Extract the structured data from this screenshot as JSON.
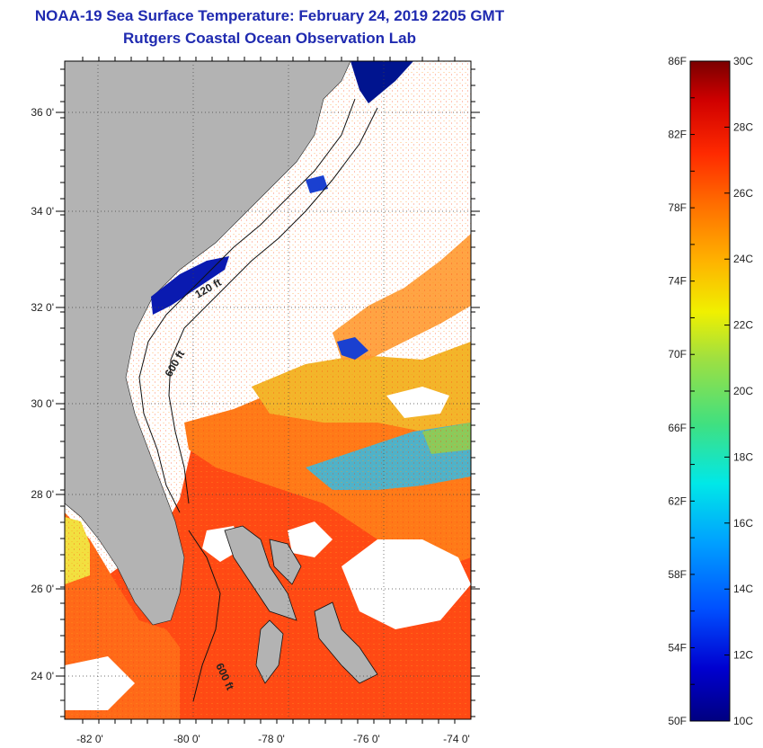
{
  "header": {
    "title": "NOAA-19 Sea Surface Temperature:  February 24, 2019 2205 GMT",
    "subtitle": "Rutgers Coastal Ocean Observation Lab"
  },
  "map": {
    "lon_ticks": [
      "-82 0'",
      "-80 0'",
      "-78 0'",
      "-76 0'",
      "-74 0'"
    ],
    "lat_ticks": [
      "36 0'",
      "34 0'",
      "32 0'",
      "30 0'",
      "28 0'",
      "26 0'",
      "24 0'"
    ],
    "contour_labels": [
      "120 ft",
      "600 ft",
      "600 ft"
    ],
    "land_color": "#b3b3b3",
    "no_data_color": "#ffffff"
  },
  "colorbar": {
    "fahrenheit": [
      "86F",
      "82F",
      "78F",
      "74F",
      "70F",
      "66F",
      "62F",
      "58F",
      "54F",
      "50F"
    ],
    "celsius": [
      "30C",
      "28C",
      "26C",
      "24C",
      "22C",
      "20C",
      "18C",
      "16C",
      "14C",
      "12C",
      "10C"
    ],
    "colors": [
      "#000080",
      "#0000d0",
      "#0050ff",
      "#00a0ff",
      "#00e8e8",
      "#40e080",
      "#a0e040",
      "#f0f000",
      "#ffb000",
      "#ff7000",
      "#ff2a00",
      "#d00000",
      "#7a0000"
    ]
  }
}
